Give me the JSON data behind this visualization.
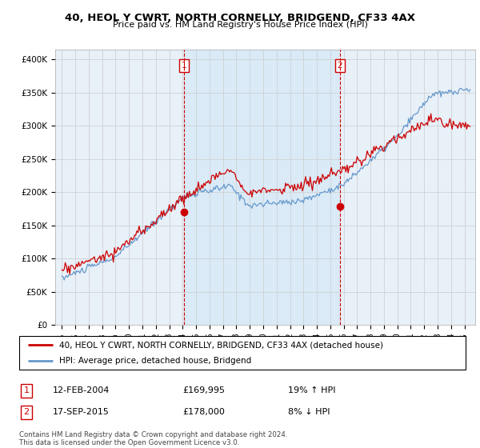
{
  "title": "40, HEOL Y CWRT, NORTH CORNELLY, BRIDGEND, CF33 4AX",
  "subtitle": "Price paid vs. HM Land Registry's House Price Index (HPI)",
  "legend_line1": "40, HEOL Y CWRT, NORTH CORNELLY, BRIDGEND, CF33 4AX (detached house)",
  "legend_line2": "HPI: Average price, detached house, Bridgend",
  "transaction1_date": "12-FEB-2004",
  "transaction1_price": "£169,995",
  "transaction1_hpi": "19% ↑ HPI",
  "transaction2_date": "17-SEP-2015",
  "transaction2_price": "£178,000",
  "transaction2_hpi": "8% ↓ HPI",
  "footnote": "Contains HM Land Registry data © Crown copyright and database right 2024.\nThis data is licensed under the Open Government Licence v3.0.",
  "red_color": "#cc0000",
  "blue_color": "#6699cc",
  "highlight_color": "#daeaf7",
  "marker1_x": 2004.12,
  "marker1_y": 169995,
  "marker2_x": 2015.72,
  "marker2_y": 178000,
  "ylim": [
    0,
    415000
  ],
  "xlim_start": 1994.5,
  "xlim_end": 2025.8,
  "yticks": [
    0,
    50000,
    100000,
    150000,
    200000,
    250000,
    300000,
    350000,
    400000
  ],
  "ytick_labels": [
    "£0",
    "£50K",
    "£100K",
    "£150K",
    "£200K",
    "£250K",
    "£300K",
    "£350K",
    "£400K"
  ],
  "xtick_years": [
    1995,
    1996,
    1997,
    1998,
    1999,
    2000,
    2001,
    2002,
    2003,
    2004,
    2005,
    2006,
    2007,
    2008,
    2009,
    2010,
    2011,
    2012,
    2013,
    2014,
    2015,
    2016,
    2017,
    2018,
    2019,
    2020,
    2021,
    2022,
    2023,
    2024,
    2025
  ],
  "grid_color": "#cccccc",
  "bg_color": "#e8f0f8"
}
